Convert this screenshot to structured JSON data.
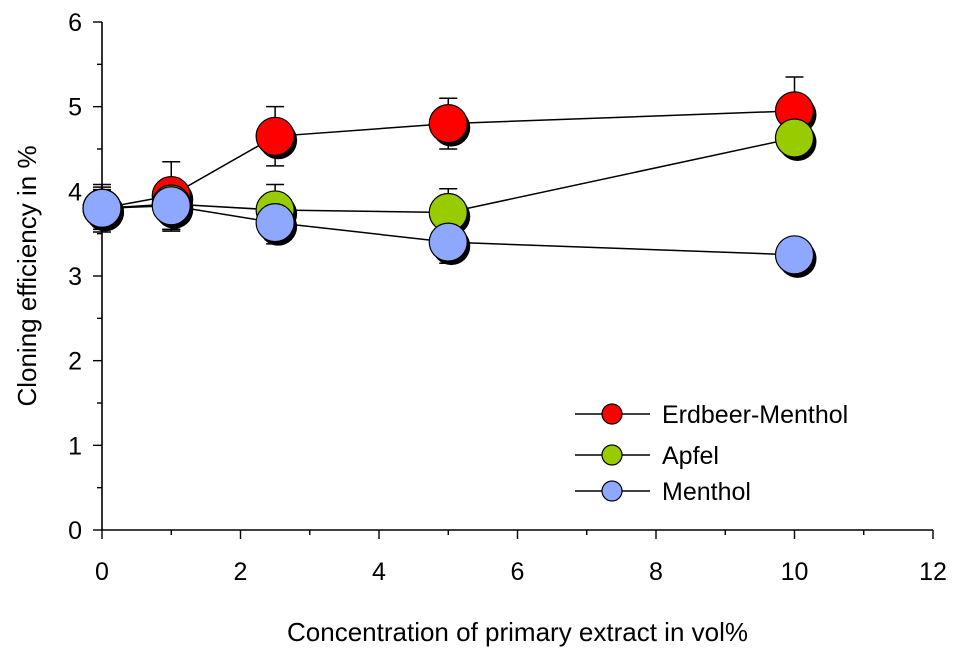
{
  "chart_data": {
    "type": "scatter",
    "xlabel": "Concentration of primary extract in vol%",
    "ylabel": "Cloning efficiency in %",
    "xlim": [
      0,
      12
    ],
    "ylim": [
      0,
      6
    ],
    "x_ticks": [
      0,
      2,
      4,
      6,
      8,
      10,
      12
    ],
    "y_ticks": [
      0,
      1,
      2,
      3,
      4,
      5,
      6
    ],
    "x_tick_labels": [
      "0",
      "2",
      "4",
      "6",
      "8",
      "10",
      "12"
    ],
    "y_tick_labels": [
      "0",
      "1",
      "2",
      "3",
      "4",
      "5",
      "6"
    ],
    "grid": false,
    "legend_position": "bottom-right",
    "series": [
      {
        "name": "Erdbeer-Menthol",
        "color": "#ff0000",
        "x": [
          0,
          1,
          2.5,
          5,
          10
        ],
        "y": [
          3.8,
          3.95,
          4.65,
          4.8,
          4.95
        ],
        "err": [
          0.28,
          0.4,
          0.35,
          0.3,
          0.4
        ]
      },
      {
        "name": "Apfel",
        "color": "#99cc00",
        "x": [
          0,
          1,
          2.5,
          5,
          10
        ],
        "y": [
          3.8,
          3.85,
          3.78,
          3.75,
          4.63
        ],
        "err": [
          0.25,
          0.3,
          0.3,
          0.28,
          0
        ]
      },
      {
        "name": "Menthol",
        "color": "#8fa8ff",
        "x": [
          0,
          1,
          2.5,
          5,
          10
        ],
        "y": [
          3.8,
          3.83,
          3.63,
          3.4,
          3.25
        ],
        "err": [
          0.22,
          0.3,
          0.25,
          0.25,
          0
        ]
      }
    ]
  }
}
